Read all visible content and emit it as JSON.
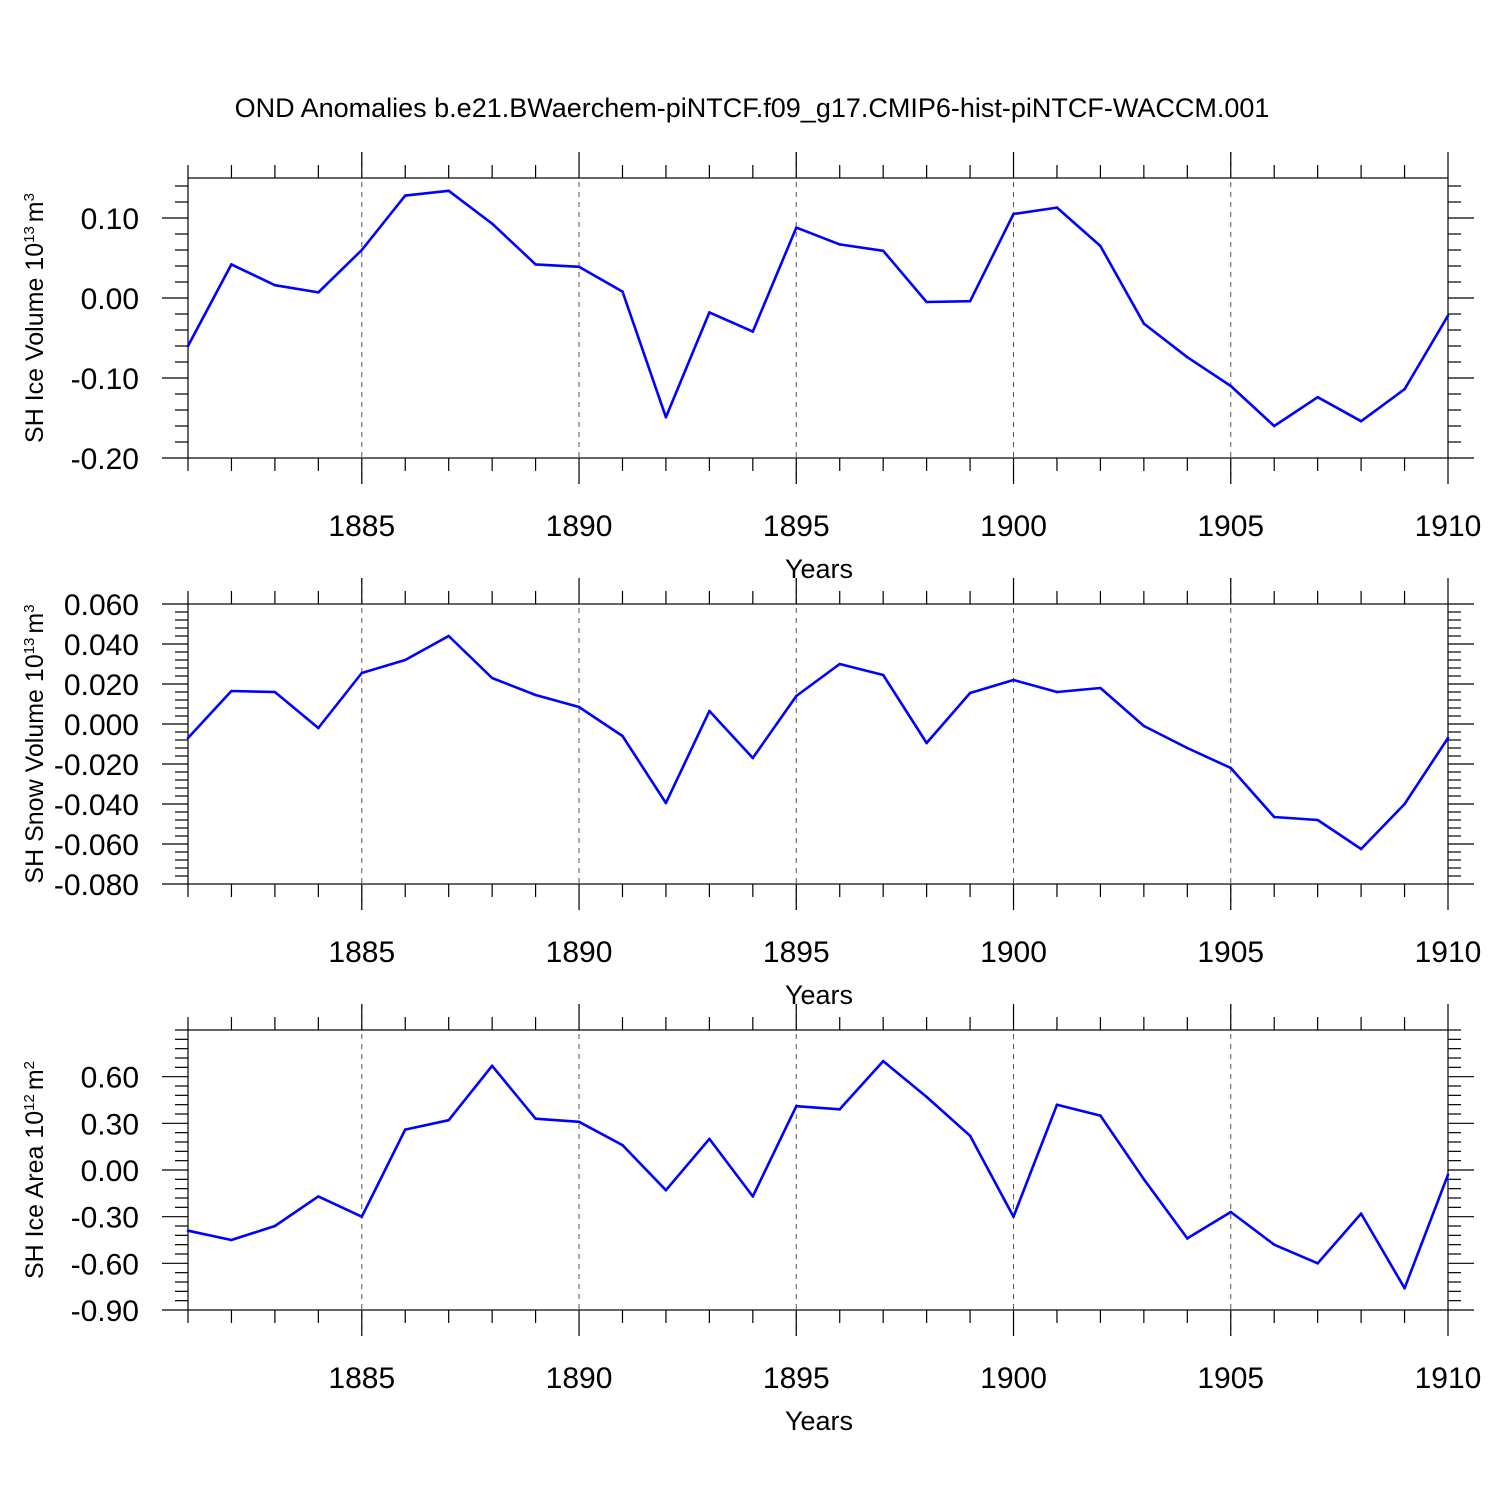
{
  "chart_data": {
    "title": "OND Anomalies b.e21.BWaerchem-piNTCF.f09_g17.CMIP6-hist-piNTCF-WACCM.001",
    "type": "line",
    "color": "#0000ff",
    "x": [
      1881,
      1882,
      1883,
      1884,
      1885,
      1886,
      1887,
      1888,
      1889,
      1890,
      1891,
      1892,
      1893,
      1894,
      1895,
      1896,
      1897,
      1898,
      1899,
      1900,
      1901,
      1902,
      1903,
      1904,
      1905,
      1906,
      1907,
      1908,
      1909,
      1910
    ],
    "xlim": [
      1881,
      1910
    ],
    "xticks": [
      1885,
      1890,
      1895,
      1900,
      1905,
      1910
    ],
    "xlabel": "Years",
    "panels": [
      {
        "name": "sh-ice-volume",
        "ylabel": "SH Ice Volume 10",
        "ylabel_exp": "13",
        "ylabel_unit": "m",
        "ylabel_unit_exp": "3",
        "ylim": [
          -0.2,
          0.15
        ],
        "yticks": [
          -0.2,
          -0.1,
          0.0,
          0.1
        ],
        "ytick_labels": [
          "-0.20",
          "-0.10",
          "0.00",
          "0.10"
        ],
        "values": [
          -0.06,
          0.042,
          0.016,
          0.007,
          0.06,
          0.128,
          0.134,
          0.093,
          0.042,
          0.039,
          0.008,
          -0.149,
          -0.018,
          -0.042,
          0.088,
          0.067,
          0.059,
          -0.005,
          -0.004,
          0.105,
          0.113,
          0.065,
          -0.032,
          -0.074,
          -0.11,
          -0.16,
          -0.124,
          -0.154,
          -0.114,
          -0.022
        ]
      },
      {
        "name": "sh-snow-volume",
        "ylabel": "SH Snow Volume 10",
        "ylabel_exp": "13",
        "ylabel_unit": "m",
        "ylabel_unit_exp": "3",
        "ylim": [
          -0.08,
          0.06
        ],
        "yticks": [
          -0.08,
          -0.06,
          -0.04,
          -0.02,
          0.0,
          0.02,
          0.04,
          0.06
        ],
        "ytick_labels": [
          "-0.080",
          "-0.060",
          "-0.040",
          "-0.020",
          "0.000",
          "0.020",
          "0.040",
          "0.060"
        ],
        "values": [
          -0.007,
          0.0165,
          0.016,
          -0.002,
          0.0255,
          0.032,
          0.044,
          0.023,
          0.0145,
          0.0085,
          -0.006,
          -0.0395,
          0.0065,
          -0.017,
          0.014,
          0.03,
          0.0245,
          -0.0095,
          0.0155,
          0.022,
          0.016,
          0.018,
          -0.001,
          -0.012,
          -0.022,
          -0.0465,
          -0.048,
          -0.0625,
          -0.04,
          -0.007
        ]
      },
      {
        "name": "sh-ice-area",
        "ylabel": "SH Ice Area 10",
        "ylabel_exp": "12",
        "ylabel_unit": "m",
        "ylabel_unit_exp": "2",
        "ylim": [
          -0.9,
          0.9
        ],
        "yticks": [
          -0.9,
          -0.6,
          -0.3,
          0.0,
          0.3,
          0.6
        ],
        "ytick_labels": [
          "-0.90",
          "-0.60",
          "-0.30",
          "0.00",
          "0.30",
          "0.60"
        ],
        "values": [
          -0.39,
          -0.45,
          -0.36,
          -0.17,
          -0.3,
          0.26,
          0.32,
          0.67,
          0.33,
          0.31,
          0.16,
          -0.13,
          0.2,
          -0.17,
          0.41,
          0.39,
          0.7,
          0.47,
          0.22,
          -0.3,
          0.42,
          0.35,
          -0.06,
          -0.44,
          -0.27,
          -0.48,
          -0.6,
          -0.28,
          -0.76,
          -0.03
        ]
      }
    ]
  }
}
